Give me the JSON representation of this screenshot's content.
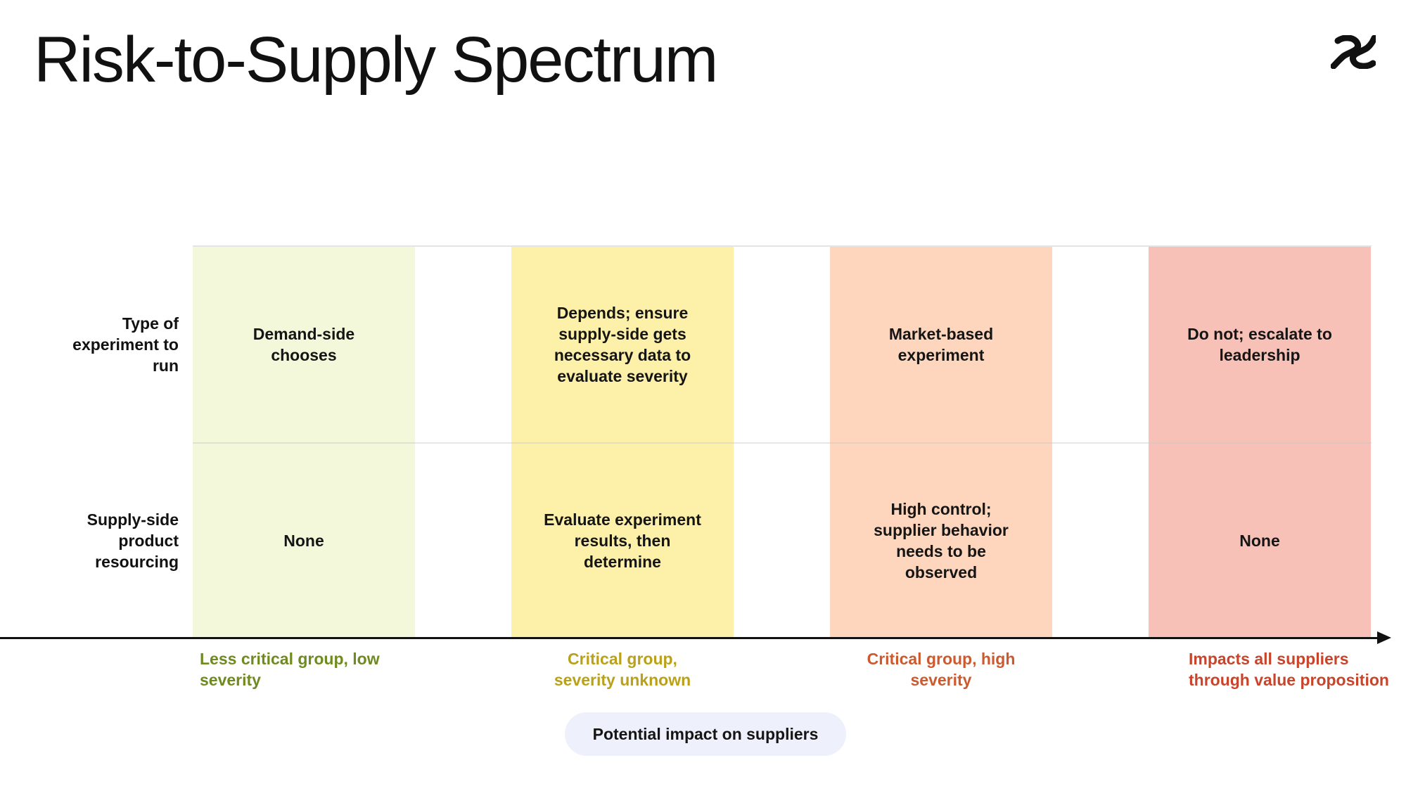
{
  "header": {
    "title": "Risk-to-Supply Spectrum",
    "logo_icon": "interlocking-s-logo"
  },
  "rows": [
    {
      "label": "Type of experiment to run"
    },
    {
      "label": "Supply-side product resourcing"
    }
  ],
  "columns": [
    {
      "color": "#f3f8da",
      "axis_label": "Less critical group, low severity",
      "axis_label_color": "#6f8a1e",
      "cells": [
        "Demand-side chooses",
        "None"
      ]
    },
    {
      "color": "#fdf0a8",
      "axis_label": "Critical group, severity unknown",
      "axis_label_color": "#b9a21a",
      "cells": [
        "Depends; ensure supply-side gets necessary data to evaluate severity",
        "Evaluate experiment results, then determine"
      ]
    },
    {
      "color": "#fdd6bd",
      "axis_label": "Critical group, high severity",
      "axis_label_color": "#cc5a2e",
      "cells": [
        "Market-based experiment",
        "High control; supplier behavior needs to be observed"
      ]
    },
    {
      "color": "#f8c1b7",
      "axis_label": "Impacts all suppliers through value proposition",
      "axis_label_color": "#c8452c",
      "cells": [
        "Do not; escalate to leadership",
        "None"
      ]
    }
  ],
  "axis": {
    "title": "Potential impact on suppliers"
  }
}
